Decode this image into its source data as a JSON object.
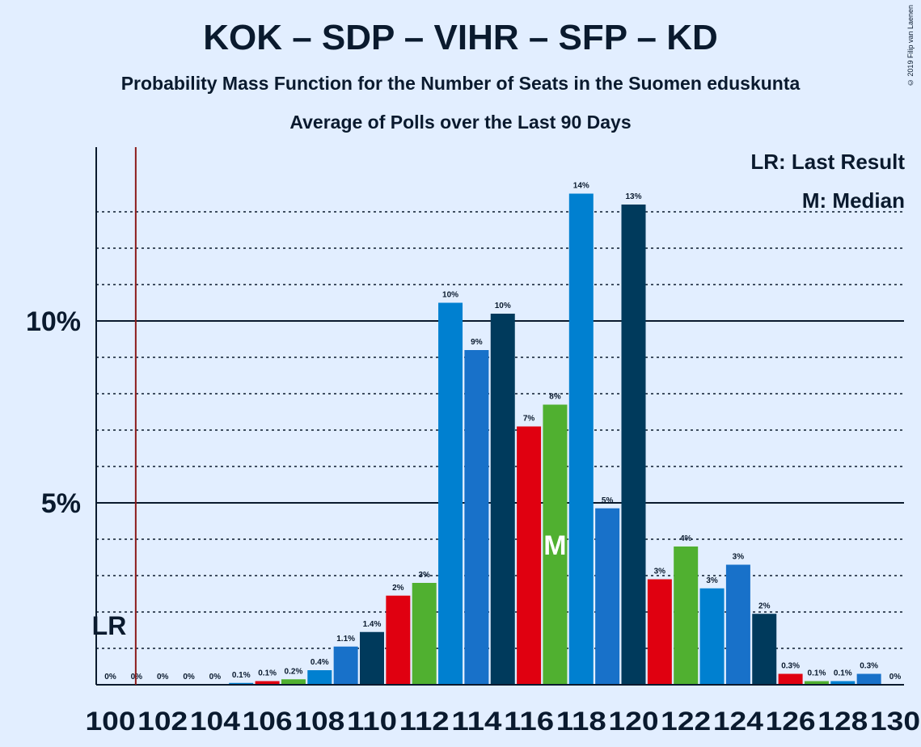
{
  "title": "KOK – SDP – VIHR – SFP – KD",
  "subtitle1": "Probability Mass Function for the Number of Seats in the Suomen eduskunta",
  "subtitle2": "Average of Polls over the Last 90 Days",
  "copyright": "© 2019 Filip van Laenen",
  "legend": {
    "last_result": "LR: Last Result",
    "median": "M: Median"
  },
  "chart_data": {
    "type": "bar",
    "x": [
      100,
      101,
      102,
      103,
      104,
      105,
      106,
      107,
      108,
      109,
      110,
      111,
      112,
      113,
      114,
      115,
      116,
      117,
      118,
      119,
      120,
      121,
      122,
      123,
      124,
      125,
      126,
      127,
      128,
      129,
      130
    ],
    "values": [
      0,
      0,
      0,
      0,
      0,
      0.05,
      0.1,
      0.15,
      0.4,
      1.05,
      1.45,
      2.45,
      2.8,
      10.5,
      9.2,
      10.2,
      7.1,
      7.7,
      13.5,
      4.85,
      13.2,
      2.9,
      3.8,
      2.65,
      3.3,
      1.95,
      0.3,
      0.1,
      0.1,
      0.3,
      0
    ],
    "labels": [
      "0%",
      "0%",
      "0%",
      "0%",
      "0%",
      "0.1%",
      "0.1%",
      "0.2%",
      "0.4%",
      "1.1%",
      "1.4%",
      "2%",
      "3%",
      "10%",
      "9%",
      "10%",
      "7%",
      "8%",
      "14%",
      "5%",
      "13%",
      "3%",
      "4%",
      "3%",
      "3%",
      "2%",
      "0.3%",
      "0.1%",
      "0.1%",
      "0.3%",
      "0%"
    ],
    "xtick_labels": [
      "100",
      "102",
      "104",
      "106",
      "108",
      "110",
      "112",
      "114",
      "116",
      "118",
      "120",
      "122",
      "124",
      "126",
      "128",
      "130"
    ],
    "ytick_labels": [
      "5%",
      "10%"
    ],
    "ylim": [
      0,
      14.75
    ],
    "last_result_seat": 101,
    "last_result_label": "LR",
    "median_seat": 117,
    "median_label": "M",
    "colors": {
      "KOK": "#0080d0",
      "SDP": "#e00010",
      "VIHR": "#50b030",
      "SFP": "#1871c9",
      "KD": "#003a5c",
      "LR_line": "#8b1a1a",
      "axis": "#0a1a2e"
    },
    "bar_colors": [
      "#0080d0",
      "#1871c9",
      "#003a5c",
      "#e00010",
      "#50b030",
      "#0080d0",
      "#e00010",
      "#50b030",
      "#0080d0",
      "#1871c9",
      "#003a5c",
      "#e00010",
      "#50b030",
      "#0080d0",
      "#1871c9",
      "#003a5c",
      "#e00010",
      "#50b030",
      "#0080d0",
      "#1871c9",
      "#003a5c",
      "#e00010",
      "#50b030",
      "#0080d0",
      "#1871c9",
      "#003a5c",
      "#e00010",
      "#50b030",
      "#0080d0",
      "#1871c9",
      "#003a5c"
    ]
  }
}
